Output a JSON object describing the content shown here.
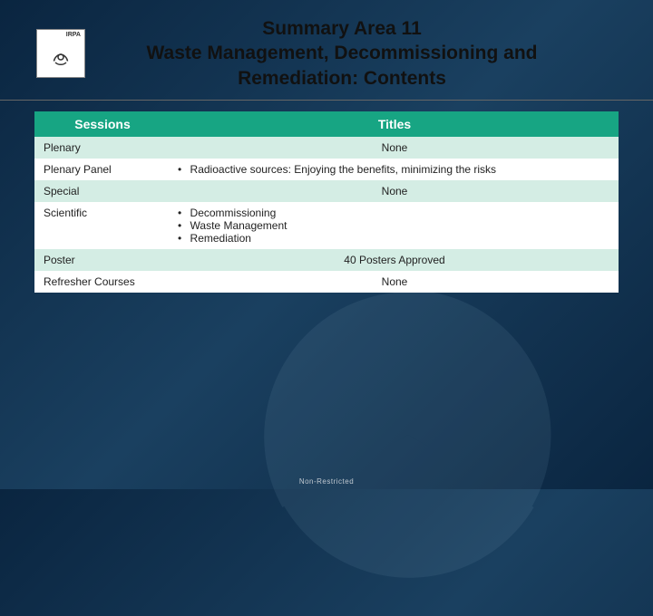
{
  "header": {
    "logo_label": "IRPA",
    "title_line1": "Summary Area 11",
    "title_line2": "Waste Management, Decommissioning and Remediation: Contents"
  },
  "table": {
    "headers": {
      "sessions": "Sessions",
      "titles": "Titles"
    },
    "rows": [
      {
        "session": "Plenary",
        "type": "text",
        "content": "None",
        "alt": true
      },
      {
        "session": "Plenary Panel",
        "type": "bullets",
        "items": [
          "Radioactive sources: Enjoying the benefits, minimizing the risks"
        ],
        "alt": false
      },
      {
        "session": "Special",
        "type": "text",
        "content": "None",
        "alt": true
      },
      {
        "session": "Scientific",
        "type": "bullets",
        "items": [
          "Decommissioning",
          "Waste Management",
          "Remediation"
        ],
        "alt": false
      },
      {
        "session": "Poster",
        "type": "text",
        "content": "40 Posters Approved",
        "alt": true
      },
      {
        "session": "Refresher Courses",
        "type": "text",
        "content": "None",
        "alt": false
      }
    ]
  },
  "footer": "Non-Restricted",
  "colors": {
    "header_bg": "#17a583",
    "alt_row_bg": "#d4ede4",
    "plain_row_bg": "#ffffff",
    "title_text": "#111111",
    "body_bg_from": "#0a2540",
    "body_bg_to": "#1a4060"
  }
}
